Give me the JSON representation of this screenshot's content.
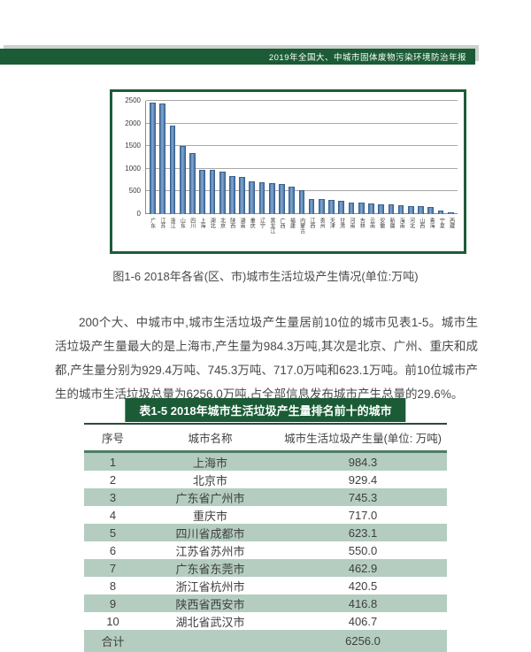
{
  "page": {
    "header_banner": "2019年全国大、中城市固体废物污染环境防治年报"
  },
  "chart_data": {
    "type": "bar",
    "title": "",
    "xlabel": "",
    "ylabel": "",
    "ylim": [
      0,
      2500
    ],
    "yticks": [
      0,
      500,
      1000,
      1500,
      2000,
      2500
    ],
    "grid": true,
    "legend": false,
    "bar_color": "#4f81bd",
    "categories": [
      "广东",
      "江苏",
      "浙江",
      "山东",
      "四川",
      "上海",
      "湖北",
      "北京",
      "陕西",
      "湖南",
      "重庆",
      "辽宁",
      "黑龙江",
      "广西",
      "福建",
      "内蒙古",
      "江西",
      "贵州",
      "天津",
      "甘肃",
      "河南",
      "吉林",
      "云南",
      "安徽",
      "新疆",
      "海南",
      "河北",
      "山西",
      "青海",
      "宁夏",
      "西藏"
    ],
    "values": [
      2455,
      2445,
      1945,
      1510,
      1340,
      984,
      975,
      929,
      845,
      820,
      717,
      710,
      680,
      672,
      600,
      525,
      340,
      335,
      310,
      285,
      250,
      245,
      230,
      222,
      210,
      190,
      180,
      172,
      160,
      70,
      48
    ]
  },
  "figure_caption": "图1-6  2018年各省(区、市)城市生活垃圾产生情况(单位:万吨)",
  "paragraph": "200个大、中城市中,城市生活垃圾产生量居前10位的城市见表1-5。城市生活垃圾产生量最大的是上海市,产生量为984.3万吨,其次是北京、广州、重庆和成都,产生量分别为929.4万吨、745.3万吨、717.0万吨和623.1万吨。前10位城市产生的城市生活垃圾总量为6256.0万吨,占全部信息发布城市产生总量的29.6%。",
  "table": {
    "title": "表1-5  2018年城市生活垃圾产生量排名前十的城市",
    "headers": [
      "序号",
      "城市名称",
      "城市生活垃圾产生量(单位: 万吨)"
    ],
    "rows": [
      {
        "rank": "1",
        "city": "上海市",
        "value": "984.3"
      },
      {
        "rank": "2",
        "city": "北京市",
        "value": "929.4"
      },
      {
        "rank": "3",
        "city": "广东省广州市",
        "value": "745.3"
      },
      {
        "rank": "4",
        "city": "重庆市",
        "value": "717.0"
      },
      {
        "rank": "5",
        "city": "四川省成都市",
        "value": "623.1"
      },
      {
        "rank": "6",
        "city": "江苏省苏州市",
        "value": "550.0"
      },
      {
        "rank": "7",
        "city": "广东省东莞市",
        "value": "462.9"
      },
      {
        "rank": "8",
        "city": "浙江省杭州市",
        "value": "420.5"
      },
      {
        "rank": "9",
        "city": "陕西省西安市",
        "value": "416.8"
      },
      {
        "rank": "10",
        "city": "湖北省武汉市",
        "value": "406.7"
      }
    ],
    "total_label": "合计",
    "total_value": "6256.0"
  },
  "colors": {
    "accent_green": "#1b5c36",
    "row_green": "#b4cdc0",
    "bar_blue": "#4f81bd",
    "banner_shadow": "#ccd2cc"
  }
}
